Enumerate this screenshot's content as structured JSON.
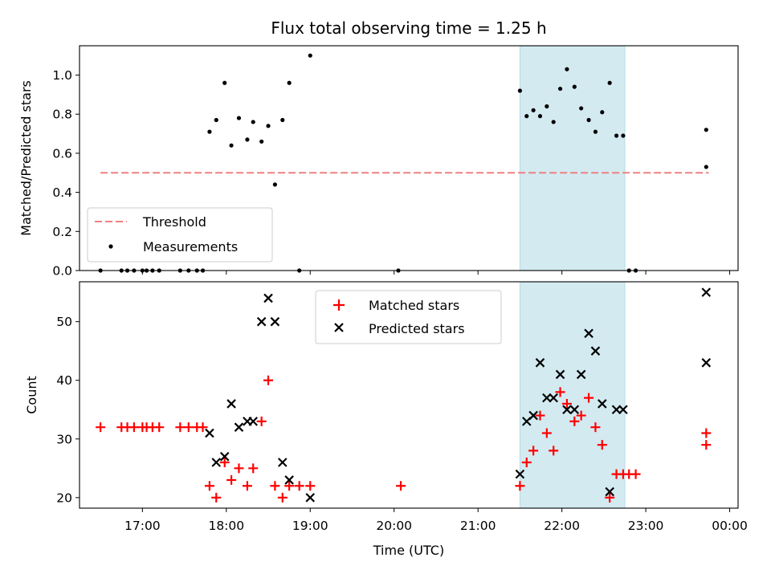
{
  "chart_data": [
    {
      "type": "scatter",
      "title": "Flux total observing time = 1.25 h",
      "xlabel": "",
      "ylabel": "Matched/Predicted stars",
      "xlim": [
        16.25,
        24.1
      ],
      "ylim": [
        0,
        1.15
      ],
      "y_ticks": [
        0.0,
        0.2,
        0.4,
        0.6,
        0.8,
        1.0
      ],
      "y_tick_labels": [
        "0.0",
        "0.2",
        "0.4",
        "0.6",
        "0.8",
        "1.0"
      ],
      "shaded_region": {
        "x_start": 21.5,
        "x_end": 22.75,
        "color": "#d3eaf1"
      },
      "threshold": {
        "label": "Threshold",
        "y": 0.5,
        "x_start": 16.5,
        "x_end": 23.75,
        "color": "#f08080"
      },
      "series": [
        {
          "name": "Measurements",
          "color": "#000000",
          "points": [
            [
              16.5,
              0.0
            ],
            [
              16.75,
              0.0
            ],
            [
              16.82,
              0.0
            ],
            [
              16.9,
              0.0
            ],
            [
              17.0,
              0.0
            ],
            [
              17.05,
              0.0
            ],
            [
              17.12,
              0.0
            ],
            [
              17.2,
              0.0
            ],
            [
              17.45,
              0.0
            ],
            [
              17.55,
              0.0
            ],
            [
              17.65,
              0.0
            ],
            [
              17.72,
              0.0
            ],
            [
              17.8,
              0.71
            ],
            [
              17.88,
              0.77
            ],
            [
              17.98,
              0.96
            ],
            [
              18.06,
              0.64
            ],
            [
              18.15,
              0.78
            ],
            [
              18.25,
              0.67
            ],
            [
              18.32,
              0.76
            ],
            [
              18.42,
              0.66
            ],
            [
              18.5,
              0.74
            ],
            [
              18.58,
              0.44
            ],
            [
              18.67,
              0.77
            ],
            [
              18.75,
              0.96
            ],
            [
              18.87,
              0.0
            ],
            [
              19.0,
              1.1
            ],
            [
              20.05,
              0.0
            ],
            [
              21.5,
              0.92
            ],
            [
              21.58,
              0.79
            ],
            [
              21.66,
              0.82
            ],
            [
              21.74,
              0.79
            ],
            [
              21.82,
              0.84
            ],
            [
              21.9,
              0.76
            ],
            [
              21.98,
              0.93
            ],
            [
              22.06,
              1.03
            ],
            [
              22.15,
              0.94
            ],
            [
              22.23,
              0.83
            ],
            [
              22.32,
              0.77
            ],
            [
              22.4,
              0.71
            ],
            [
              22.48,
              0.81
            ],
            [
              22.57,
              0.96
            ],
            [
              22.65,
              0.69
            ],
            [
              22.73,
              0.69
            ],
            [
              22.8,
              0.0
            ],
            [
              22.88,
              0.0
            ],
            [
              23.72,
              0.72
            ],
            [
              23.72,
              0.53
            ]
          ]
        }
      ],
      "legend": {
        "location": "lower-left",
        "entries": [
          "Threshold",
          "Measurements"
        ]
      }
    },
    {
      "type": "scatter",
      "title": "",
      "xlabel": "Time (UTC)",
      "ylabel": "Count",
      "xlim": [
        16.25,
        24.1
      ],
      "ylim": [
        18.2,
        56.8
      ],
      "y_ticks": [
        20,
        30,
        40,
        50
      ],
      "y_tick_labels": [
        "20",
        "30",
        "40",
        "50"
      ],
      "x_ticks": [
        17,
        18,
        19,
        20,
        21,
        22,
        23,
        24
      ],
      "x_tick_labels": [
        "17:00",
        "18:00",
        "19:00",
        "20:00",
        "21:00",
        "22:00",
        "23:00",
        "00:00"
      ],
      "shaded_region": {
        "x_start": 21.5,
        "x_end": 22.75,
        "color": "#d3eaf1"
      },
      "series": [
        {
          "name": "Matched stars",
          "color": "#ff0000",
          "marker": "plus",
          "points": [
            [
              16.5,
              32
            ],
            [
              16.75,
              32
            ],
            [
              16.82,
              32
            ],
            [
              16.9,
              32
            ],
            [
              17.0,
              32
            ],
            [
              17.05,
              32
            ],
            [
              17.12,
              32
            ],
            [
              17.2,
              32
            ],
            [
              17.45,
              32
            ],
            [
              17.55,
              32
            ],
            [
              17.65,
              32
            ],
            [
              17.72,
              32
            ],
            [
              17.8,
              22
            ],
            [
              17.88,
              20
            ],
            [
              17.98,
              26
            ],
            [
              18.06,
              23
            ],
            [
              18.15,
              25
            ],
            [
              18.25,
              22
            ],
            [
              18.32,
              25
            ],
            [
              18.42,
              33
            ],
            [
              18.5,
              40
            ],
            [
              18.58,
              22
            ],
            [
              18.67,
              20
            ],
            [
              18.75,
              22
            ],
            [
              18.87,
              22
            ],
            [
              19.0,
              22
            ],
            [
              20.08,
              22
            ],
            [
              21.5,
              22
            ],
            [
              21.58,
              26
            ],
            [
              21.66,
              28
            ],
            [
              21.74,
              34
            ],
            [
              21.82,
              31
            ],
            [
              21.9,
              28
            ],
            [
              21.98,
              38
            ],
            [
              22.06,
              36
            ],
            [
              22.15,
              33
            ],
            [
              22.23,
              34
            ],
            [
              22.32,
              37
            ],
            [
              22.4,
              32
            ],
            [
              22.48,
              29
            ],
            [
              22.57,
              20
            ],
            [
              22.65,
              24
            ],
            [
              22.73,
              24
            ],
            [
              22.8,
              24
            ],
            [
              22.88,
              24
            ],
            [
              23.72,
              31
            ],
            [
              23.72,
              29
            ]
          ]
        },
        {
          "name": "Predicted stars",
          "color": "#000000",
          "marker": "x",
          "points": [
            [
              17.8,
              31
            ],
            [
              17.88,
              26
            ],
            [
              17.98,
              27
            ],
            [
              18.06,
              36
            ],
            [
              18.15,
              32
            ],
            [
              18.25,
              33
            ],
            [
              18.32,
              33
            ],
            [
              18.42,
              50
            ],
            [
              18.5,
              54
            ],
            [
              18.58,
              50
            ],
            [
              18.67,
              26
            ],
            [
              18.75,
              23
            ],
            [
              19.0,
              20
            ],
            [
              21.5,
              24
            ],
            [
              21.58,
              33
            ],
            [
              21.66,
              34
            ],
            [
              21.74,
              43
            ],
            [
              21.82,
              37
            ],
            [
              21.9,
              37
            ],
            [
              21.98,
              41
            ],
            [
              22.06,
              35
            ],
            [
              22.15,
              35
            ],
            [
              22.23,
              41
            ],
            [
              22.32,
              48
            ],
            [
              22.4,
              45
            ],
            [
              22.48,
              36
            ],
            [
              22.57,
              21
            ],
            [
              22.65,
              35
            ],
            [
              22.73,
              35
            ],
            [
              23.72,
              55
            ],
            [
              23.72,
              43
            ]
          ]
        }
      ],
      "legend": {
        "location": "upper-center",
        "entries": [
          "Matched stars",
          "Predicted stars"
        ]
      }
    }
  ]
}
